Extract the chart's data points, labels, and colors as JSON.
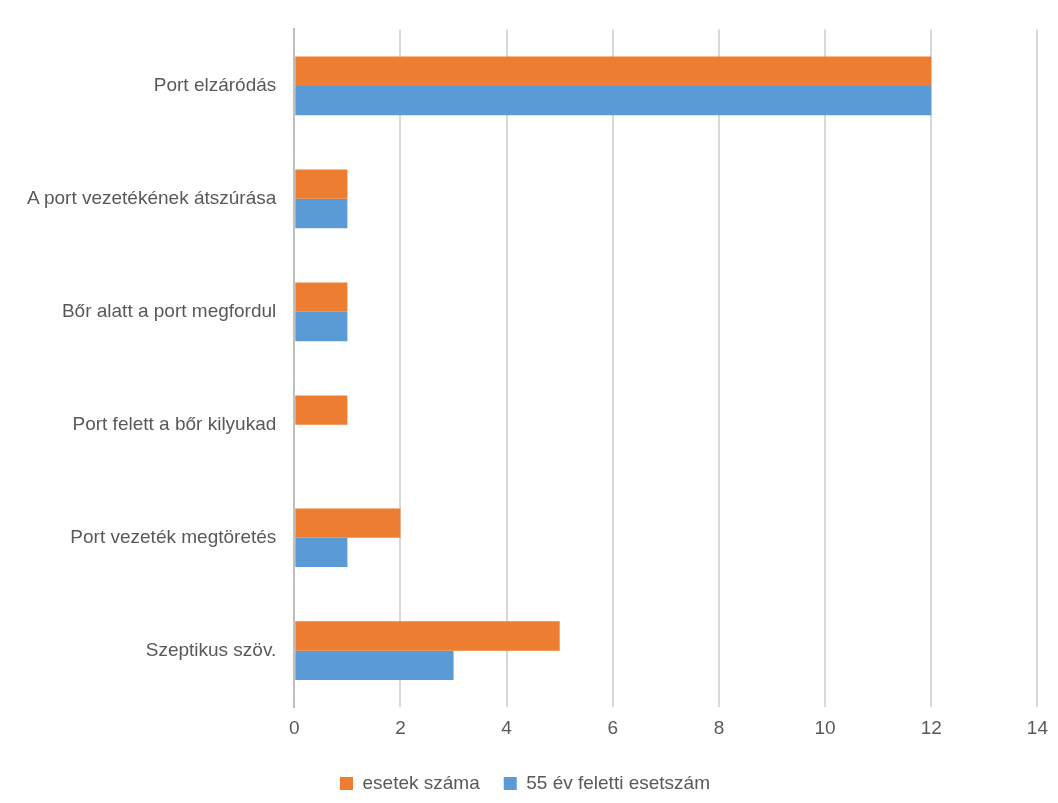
{
  "chart_data": {
    "type": "bar",
    "orientation": "horizontal",
    "categories": [
      "Port elzáródás",
      "A port vezetékének átszúrása",
      "Bőr alatt a port megfordul",
      "Port felett a bőr kilyukad",
      "Port vezeték megtöretés",
      "Szeptikus szöv."
    ],
    "series": [
      {
        "name": "esetek száma",
        "color": "#ed7d31",
        "values": [
          12,
          1,
          1,
          1,
          2,
          5
        ]
      },
      {
        "name": "55 év feletti esetszám",
        "color": "#5b9bd5",
        "values": [
          12,
          1,
          1,
          0,
          1,
          3
        ]
      }
    ],
    "xlim": [
      0,
      14
    ],
    "xticks": [
      0,
      2,
      4,
      6,
      8,
      10,
      12,
      14
    ],
    "grid": "x",
    "legend": "bottom"
  }
}
